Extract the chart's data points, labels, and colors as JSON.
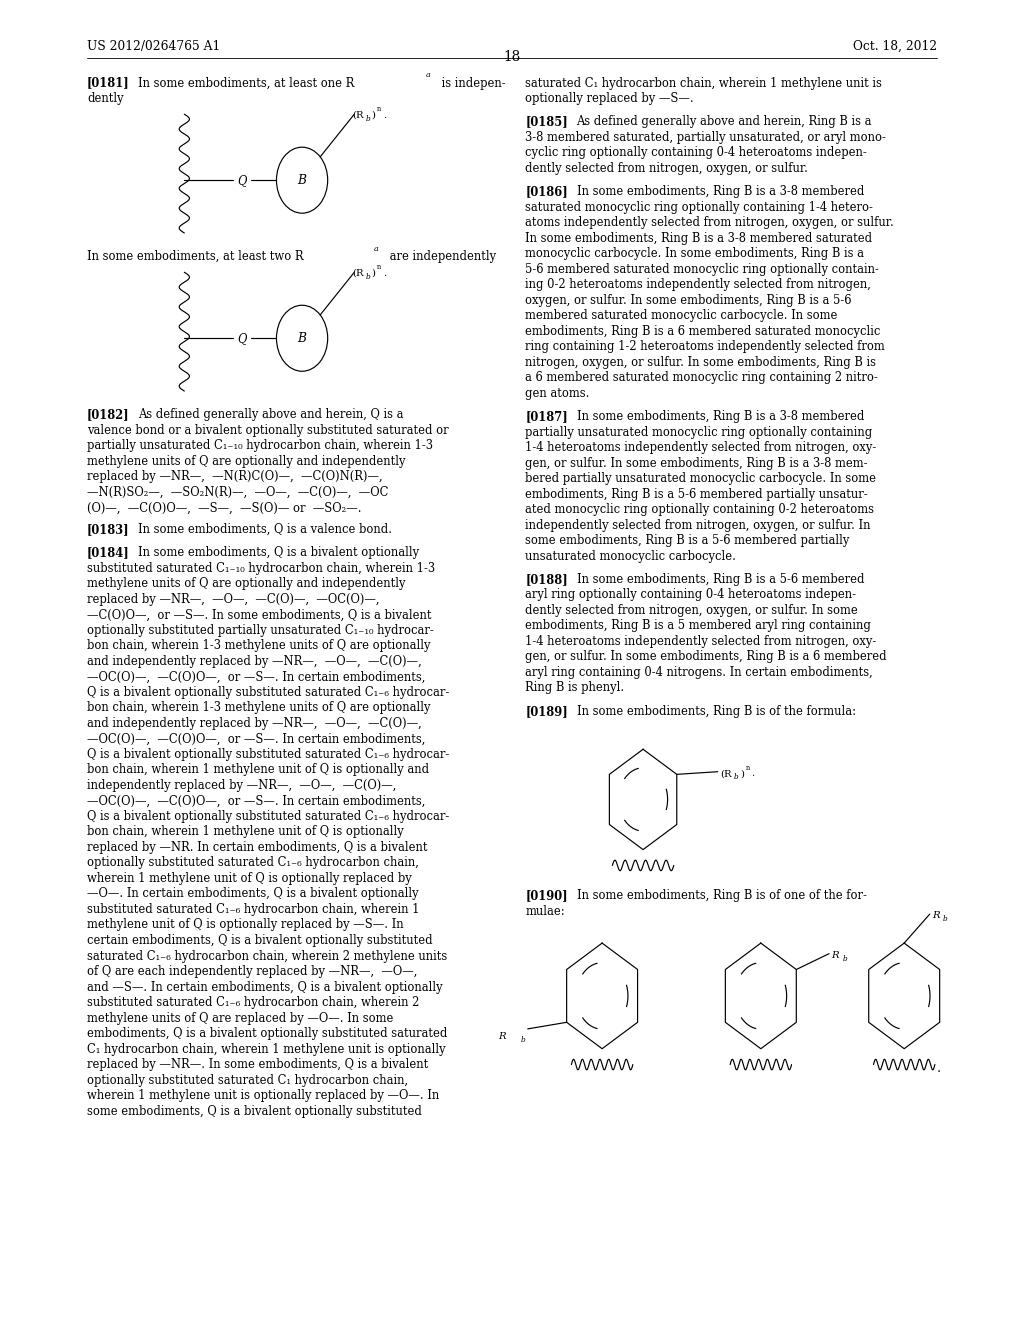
{
  "page_number": "18",
  "patent_left": "US 2012/0264765 A1",
  "patent_right": "Oct. 18, 2012",
  "bg": "#ffffff",
  "tc": "#000000",
  "col1": 0.085,
  "col2": 0.513,
  "lh": 0.01175,
  "fs": 8.3,
  "fsh": 8.8
}
